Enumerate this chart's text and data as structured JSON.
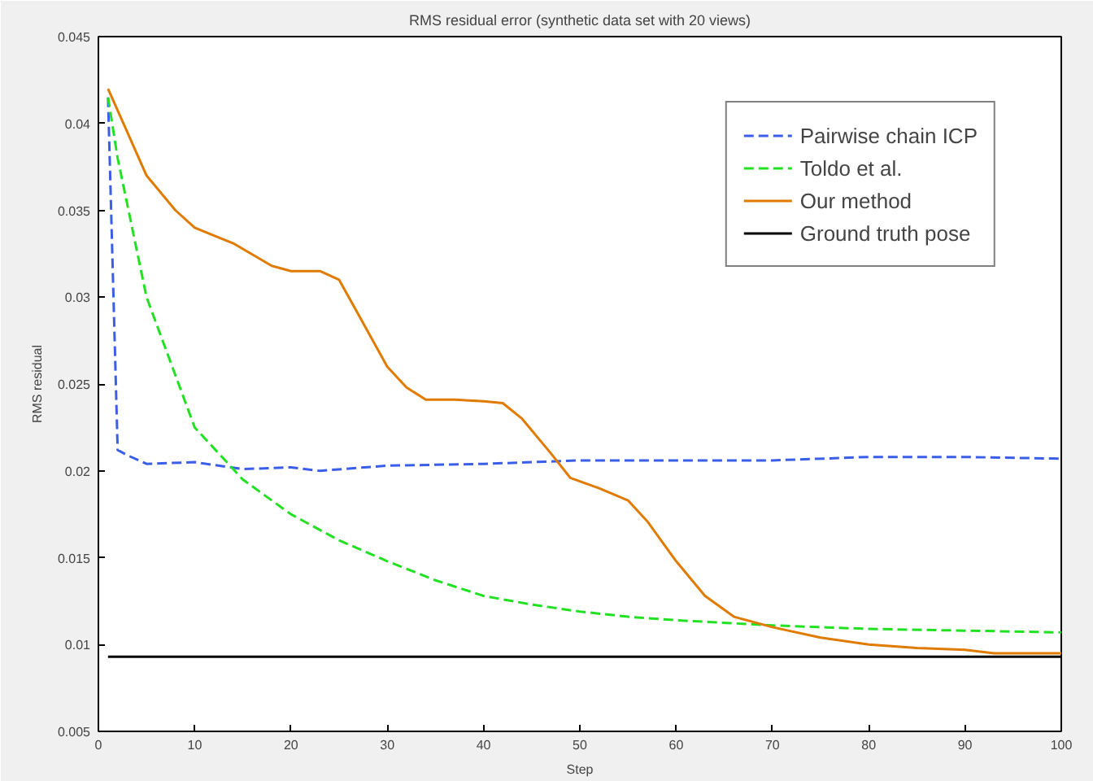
{
  "chart_data": {
    "type": "line",
    "title": "RMS residual error (synthetic data set with 20 views)",
    "xlabel": "Step",
    "ylabel": "RMS residual",
    "xlim": [
      0,
      100
    ],
    "xticks": [
      0,
      10,
      20,
      30,
      40,
      50,
      60,
      70,
      80,
      90,
      100
    ],
    "ylim": [
      0.005,
      0.045
    ],
    "yticks": [
      0.005,
      0.01,
      0.015,
      0.02,
      0.025,
      0.03,
      0.035,
      0.04,
      0.045
    ],
    "grid": false,
    "legend": "top right",
    "marker": "none",
    "series": [
      {
        "name": "Pairwise chain ICP",
        "color": "#3a5ee8",
        "line_style": "dashed",
        "x": [
          1,
          2,
          3,
          5,
          10,
          15,
          20,
          23,
          30,
          40,
          50,
          60,
          70,
          80,
          90,
          100
        ],
        "values": [
          0.0415,
          0.0212,
          0.0209,
          0.0204,
          0.0205,
          0.0201,
          0.0202,
          0.02,
          0.0203,
          0.0204,
          0.0206,
          0.0206,
          0.0206,
          0.0208,
          0.0208,
          0.0207
        ]
      },
      {
        "name": "Toldo et al.",
        "color": "#22e022",
        "line_style": "dashed",
        "x": [
          1,
          2,
          5,
          10,
          15,
          20,
          25,
          30,
          35,
          40,
          45,
          50,
          55,
          60,
          70,
          80,
          90,
          100
        ],
        "values": [
          0.0415,
          0.038,
          0.03,
          0.0225,
          0.0195,
          0.0175,
          0.016,
          0.0148,
          0.0137,
          0.0128,
          0.0123,
          0.0119,
          0.0116,
          0.0114,
          0.0111,
          0.0109,
          0.0108,
          0.0107
        ]
      },
      {
        "name": "Our method",
        "color": "#e07b00",
        "line_style": "solid",
        "x": [
          1,
          3,
          5,
          8,
          10,
          14,
          18,
          20,
          23,
          25,
          27,
          30,
          32,
          34,
          37,
          40,
          42,
          44,
          47,
          49,
          52,
          55,
          57,
          60,
          63,
          66,
          70,
          75,
          80,
          85,
          90,
          93,
          100
        ],
        "values": [
          0.042,
          0.0395,
          0.037,
          0.035,
          0.034,
          0.0331,
          0.0318,
          0.0315,
          0.0315,
          0.031,
          0.029,
          0.026,
          0.0248,
          0.0241,
          0.0241,
          0.024,
          0.0239,
          0.023,
          0.021,
          0.0196,
          0.019,
          0.0183,
          0.0171,
          0.0148,
          0.0128,
          0.0116,
          0.011,
          0.0104,
          0.01,
          0.0098,
          0.0097,
          0.0095,
          0.0095
        ]
      },
      {
        "name": "Ground truth pose",
        "color": "#000000",
        "line_style": "solid",
        "x": [
          1,
          100
        ],
        "values": [
          0.0093,
          0.0093
        ]
      }
    ]
  }
}
